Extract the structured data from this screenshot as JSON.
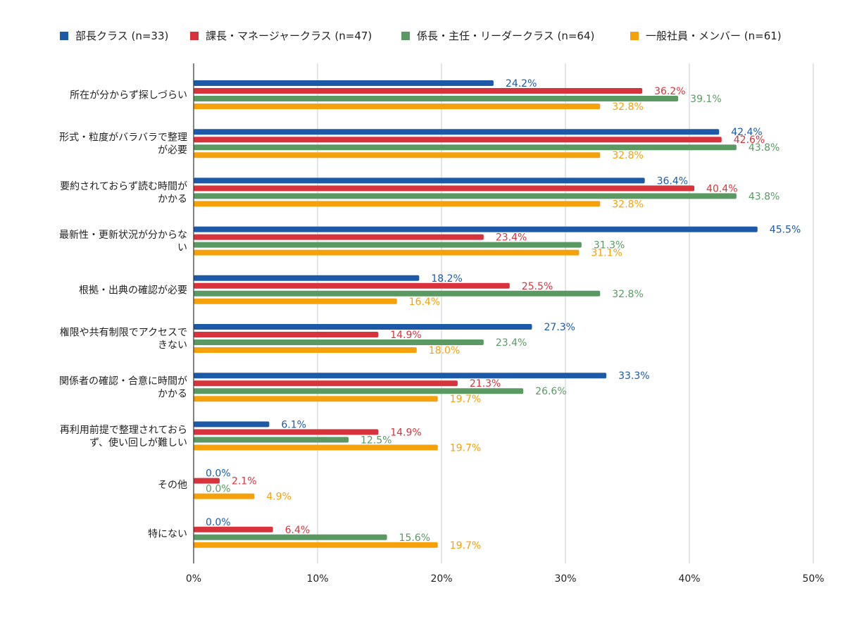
{
  "chart_data": {
    "type": "bar",
    "orientation": "horizontal",
    "title": "",
    "xlabel": "",
    "ylabel": "",
    "xlim": [
      0,
      50
    ],
    "x_ticks": [
      "0%",
      "10%",
      "20%",
      "30%",
      "40%",
      "50%"
    ],
    "grid": true,
    "legend_position": "top",
    "value_suffix": "%",
    "categories": [
      [
        "所在が分からず探しづらい"
      ],
      [
        "形式・粒度がバラバラで整理",
        "が必要"
      ],
      [
        "要約されておらず読む時間が",
        "かかる"
      ],
      [
        "最新性・更新状況が分からな",
        "い"
      ],
      [
        "根拠・出典の確認が必要"
      ],
      [
        "権限や共有制限でアクセスで",
        "きない"
      ],
      [
        "関係者の確認・合意に時間が",
        "かかる"
      ],
      [
        "再利用前提で整理されておら",
        "ず、使い回しが難しい"
      ],
      [
        "その他"
      ],
      [
        "特にない"
      ]
    ],
    "series": [
      {
        "name": "部長クラス (n=33)",
        "color": "#1c5aa8",
        "values": [
          24.2,
          42.4,
          36.4,
          45.5,
          18.2,
          27.3,
          33.3,
          6.1,
          0.0,
          0.0
        ]
      },
      {
        "name": "課長・マネージャークラス (n=47)",
        "color": "#d7333d",
        "values": [
          36.2,
          42.6,
          40.4,
          23.4,
          25.5,
          14.9,
          21.3,
          14.9,
          2.1,
          6.4
        ]
      },
      {
        "name": "係長・主任・リーダークラス (n=64)",
        "color": "#5a9a62",
        "values": [
          39.1,
          43.8,
          43.8,
          31.3,
          32.8,
          23.4,
          26.6,
          12.5,
          0.0,
          15.6
        ]
      },
      {
        "name": "一般社員・メンバー (n=61)",
        "color": "#f5a10b",
        "values": [
          32.8,
          32.8,
          32.8,
          31.1,
          16.4,
          18.0,
          19.7,
          19.7,
          4.9,
          19.7
        ]
      }
    ]
  }
}
